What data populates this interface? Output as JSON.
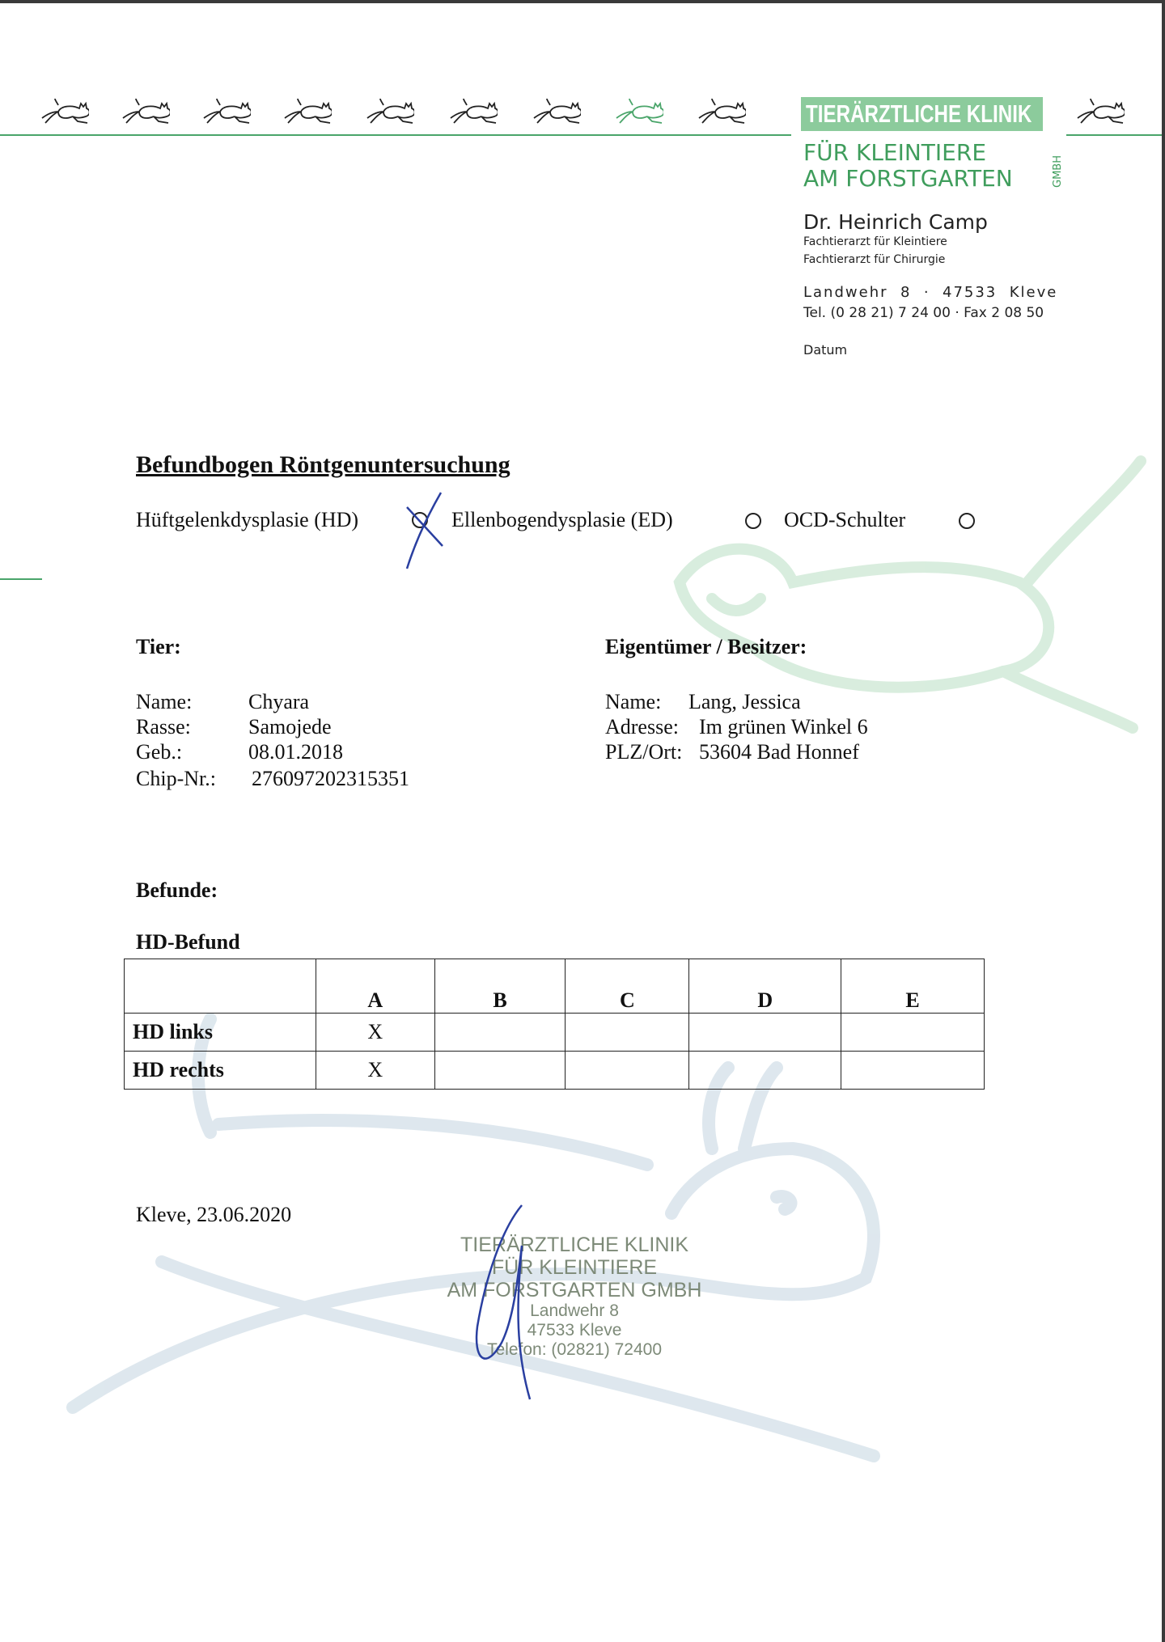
{
  "letterhead": {
    "clinic_line1": "TIERÄRZTLICHE KLINIK",
    "clinic_line2": "FÜR KLEINTIERE",
    "clinic_line3": "AM FORSTGARTEN",
    "clinic_suffix": "GMBH",
    "doctor": "Dr. Heinrich Camp",
    "specialty1": "Fachtierarzt für Kleintiere",
    "specialty2": "Fachtierarzt für Chirurgie",
    "address": "Landwehr  8  ·  47533  Kleve",
    "phone": "Tel. (0 28 21) 7 24 00 · Fax 2 08 50",
    "date_label": "Datum",
    "brand_color": "#4aa56a",
    "icon": "running-cat-icon"
  },
  "form": {
    "title": "Befundbogen Röntgenuntersuchung",
    "options": [
      {
        "label": "Hüftgelenkdysplasie (HD)",
        "checked": true
      },
      {
        "label": "Ellenbogendysplasie (ED)",
        "checked": false
      },
      {
        "label": "OCD-Schulter",
        "checked": false
      }
    ]
  },
  "animal": {
    "heading": "Tier:",
    "fields": [
      {
        "label": "Name:",
        "value": "Chyara"
      },
      {
        "label": "Rasse:",
        "value": "Samojede"
      },
      {
        "label": "Geb.:",
        "value": "08.01.2018"
      },
      {
        "label": "Chip-Nr.:",
        "value": "276097202315351"
      }
    ]
  },
  "owner": {
    "heading": "Eigentümer / Besitzer:",
    "fields": [
      {
        "label": "Name:",
        "value": "Lang, Jessica"
      },
      {
        "label": "Adresse:",
        "value": "Im grünen Winkel 6"
      },
      {
        "label": "PLZ/Ort:",
        "value": "53604 Bad Honnef"
      }
    ]
  },
  "findings": {
    "heading": "Befunde:",
    "hd_heading": "HD-Befund",
    "columns": [
      "",
      "A",
      "B",
      "C",
      "D",
      "E"
    ],
    "rows": [
      {
        "label": "HD links",
        "cells": [
          "X",
          "",
          "",
          "",
          ""
        ]
      },
      {
        "label": "HD rechts",
        "cells": [
          "X",
          "",
          "",
          "",
          ""
        ]
      }
    ]
  },
  "footer": {
    "place_date": "Kleve, 23.06.2020",
    "stamp": [
      "TIERÄRZTLICHE KLINIK",
      "FÜR KLEINTIERE",
      "AM FORSTGARTEN GMBH",
      "Landwehr 8",
      "47533 Kleve",
      "Telefon: (02821) 72400"
    ]
  }
}
